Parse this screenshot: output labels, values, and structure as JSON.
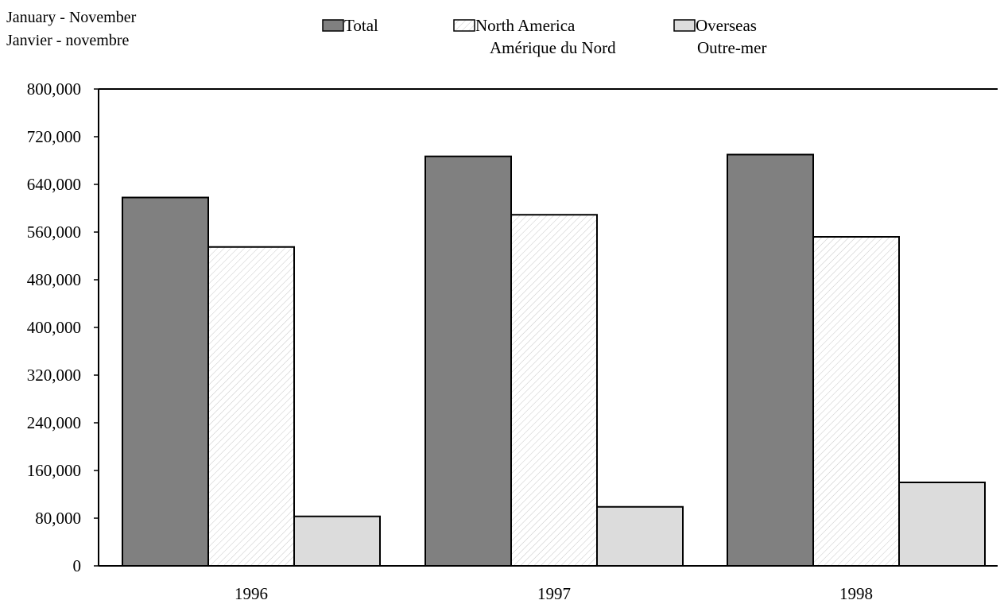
{
  "chart_data": {
    "type": "bar",
    "subtitle_lines": [
      "January - November",
      "Janvier - novembre"
    ],
    "categories": [
      "1996",
      "1997",
      "1998"
    ],
    "series": [
      {
        "name": "Total",
        "name_line2": "",
        "values": [
          618000,
          687000,
          690000
        ]
      },
      {
        "name": "North America",
        "name_line2": "Amérique du Nord",
        "values": [
          535000,
          589000,
          552000
        ]
      },
      {
        "name": "Overseas",
        "name_line2": "Outre-mer",
        "values": [
          83000,
          99000,
          140000
        ]
      }
    ],
    "ylim": [
      0,
      800000
    ],
    "y_ticks": [
      "800,000",
      "720,000",
      "640,000",
      "560,000",
      "480,000",
      "400,000",
      "320,000",
      "240,000",
      "160,000",
      "80,000",
      "0"
    ],
    "grid": false,
    "legend_position": "top"
  },
  "colors": {
    "total": "#808080",
    "north_america": "#ffffff",
    "north_america_hatch": "#c8c8c8",
    "overseas": "#dcdcdc",
    "outline": "#000000"
  }
}
